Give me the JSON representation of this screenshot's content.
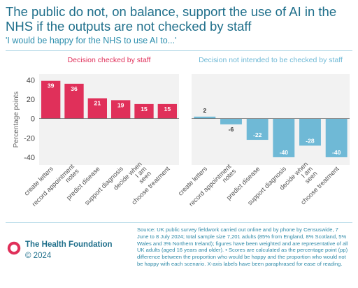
{
  "title": "The public do not, on balance, support the use of AI in the NHS if the outputs are not checked by staff",
  "subtitle": "'I would be happy for the NHS to use AI to...'",
  "source": "Source: UK public survey fieldwork carried out online and by phone by Censuswide, 7 June to 8 July 2024; total sample size 7,201 adults (85% from England, 8% Scotland, 5% Wales and 3% Northern Ireland); figures have been weighted and are representative of all UK adults (aged 16 years and older). • Scores are calculated as the percentage point (pp) difference between the proportion who would be happy and the proportion who would not be happy with each scenario. X-axis labels have been paraphrased for ease of reading.",
  "brand": {
    "name": "The Health Foundation",
    "year": "© 2024"
  },
  "colors": {
    "checked": "#e0305a",
    "not_checked": "#6fb9d6",
    "title": "#1f6f8b",
    "panel_bg": "#f2f2f2"
  },
  "chart_data": [
    {
      "type": "bar",
      "title": "Decision checked by staff",
      "ylabel": "Percentage points",
      "categories": [
        "create letters",
        "record appointment notes",
        "predict disease",
        "support diagnosis",
        "decide when I am seen",
        "choose treatment"
      ],
      "values": [
        39,
        36,
        21,
        19,
        15,
        15
      ],
      "ylim": [
        -48,
        46
      ],
      "yticks": [
        40,
        20,
        0,
        -20,
        -40
      ],
      "color": "#e0305a",
      "grid": false
    },
    {
      "type": "bar",
      "title": "Decision not intended to be checked by staff",
      "ylabel": "",
      "categories": [
        "create letters",
        "record appointment notes",
        "predict disease",
        "support diagnosis",
        "decide when I am seen",
        "choose treatment"
      ],
      "values": [
        2,
        -6,
        -22,
        -40,
        -28,
        -40
      ],
      "ylim": [
        -48,
        46
      ],
      "color": "#6fb9d6",
      "grid": false
    }
  ]
}
